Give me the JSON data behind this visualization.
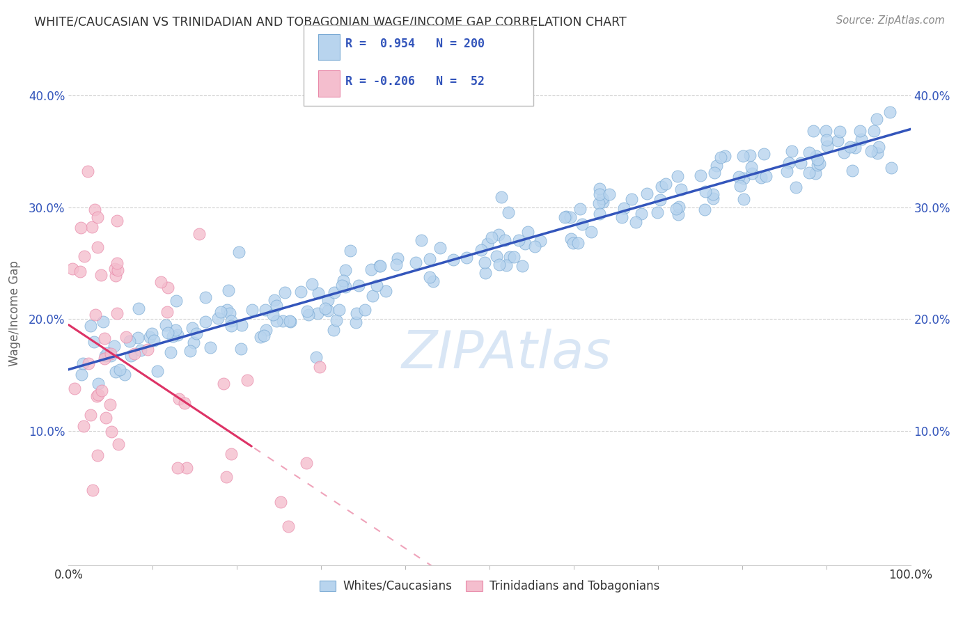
{
  "title": "WHITE/CAUCASIAN VS TRINIDADIAN AND TOBAGONIAN WAGE/INCOME GAP CORRELATION CHART",
  "source": "Source: ZipAtlas.com",
  "ylabel": "Wage/Income Gap",
  "watermark": "ZIPAtlas",
  "blue_R": 0.954,
  "blue_N": 200,
  "pink_R": -0.206,
  "pink_N": 52,
  "blue_color": "#b8d4ee",
  "blue_edge": "#7aaad4",
  "pink_color": "#f4bece",
  "pink_edge": "#e888a8",
  "trend_blue": "#3355bb",
  "trend_pink": "#dd3366",
  "blue_legend_color": "#b8d4ee",
  "pink_legend_color": "#f4bece",
  "legend_text_color": "#3355bb",
  "title_color": "#333333",
  "source_color": "#888888",
  "ylabel_color": "#666666",
  "grid_color": "#cccccc",
  "background": "#ffffff",
  "xlim": [
    0.0,
    1.0
  ],
  "ylim": [
    -0.02,
    0.43
  ],
  "yticks": [
    0.1,
    0.2,
    0.3,
    0.4
  ],
  "ytick_labels": [
    "10.0%",
    "20.0%",
    "30.0%",
    "40.0%"
  ],
  "blue_seed": 42,
  "pink_seed": 123
}
